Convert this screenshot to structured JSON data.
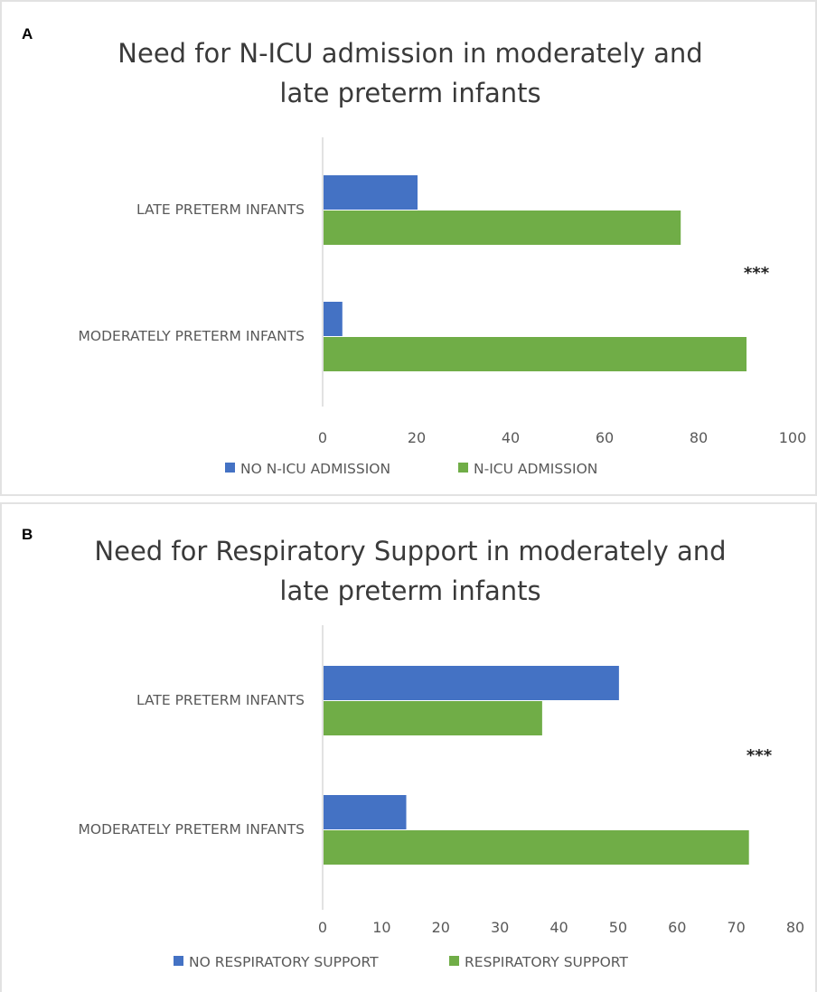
{
  "colors": {
    "blue": "#4472C4",
    "green": "#70AD47",
    "axis": "#d9d9d9"
  },
  "chart_data": [
    {
      "panel_label": "A",
      "type": "bar",
      "orientation": "horizontal",
      "title": "Need for N-ICU admission in moderately and late preterm infants",
      "title_lines": [
        "Need for N-ICU admission in moderately and",
        "late preterm infants"
      ],
      "categories": [
        "LATE PRETERM INFANTS",
        "MODERATELY PRETERM INFANTS"
      ],
      "series": [
        {
          "name": "NO N-ICU ADMISSION",
          "color": "#4472C4",
          "values": [
            20,
            4
          ]
        },
        {
          "name": "N-ICU ADMISSION",
          "color": "#70AD47",
          "values": [
            76,
            90
          ]
        }
      ],
      "xlim": [
        0,
        100
      ],
      "xticks": [
        "0",
        "20",
        "40",
        "60",
        "80",
        "100"
      ],
      "significance": "***",
      "legend": "bottom",
      "grid": false
    },
    {
      "panel_label": "B",
      "type": "bar",
      "orientation": "horizontal",
      "title": "Need for Respiratory Support in moderately and late preterm infants",
      "title_lines": [
        "Need for Respiratory Support in moderately and",
        "late preterm infants"
      ],
      "categories": [
        "LATE PRETERM INFANTS",
        "MODERATELY PRETERM INFANTS"
      ],
      "series": [
        {
          "name": "NO RESPIRATORY SUPPORT",
          "color": "#4472C4",
          "values": [
            50,
            14
          ]
        },
        {
          "name": "RESPIRATORY SUPPORT",
          "color": "#70AD47",
          "values": [
            37,
            72
          ]
        }
      ],
      "xlim": [
        0,
        80
      ],
      "xticks": [
        "0",
        "10",
        "20",
        "30",
        "40",
        "50",
        "60",
        "70",
        "80"
      ],
      "significance": "***",
      "legend": "bottom",
      "grid": false
    }
  ]
}
